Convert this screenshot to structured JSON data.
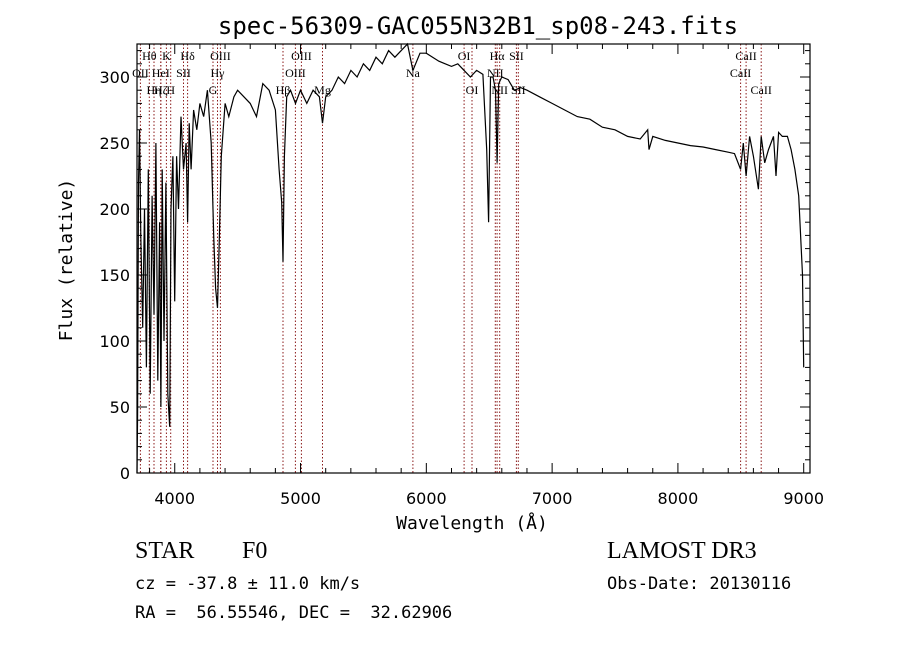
{
  "chart_data": {
    "type": "line",
    "title": "spec-56309-GAC055N32B1_sp08-243.fits",
    "xlabel": "Wavelength (Å)",
    "ylabel": "Flux (relative)",
    "xlim": [
      3700,
      9050
    ],
    "ylim": [
      0,
      325
    ],
    "xticks": [
      4000,
      5000,
      6000,
      7000,
      8000,
      9000
    ],
    "yticks": [
      0,
      50,
      100,
      150,
      200,
      250,
      300
    ],
    "series": [
      {
        "name": "spectrum",
        "x": [
          3700,
          3705,
          3712,
          3720,
          3730,
          3745,
          3760,
          3775,
          3790,
          3805,
          3820,
          3835,
          3850,
          3865,
          3880,
          3890,
          3900,
          3915,
          3930,
          3945,
          3960,
          3970,
          3985,
          4000,
          4015,
          4030,
          4050,
          4070,
          4090,
          4102,
          4115,
          4130,
          4150,
          4175,
          4200,
          4230,
          4260,
          4290,
          4310,
          4325,
          4340,
          4355,
          4370,
          4400,
          4430,
          4470,
          4500,
          4550,
          4600,
          4650,
          4700,
          4750,
          4800,
          4830,
          4850,
          4861,
          4872,
          4890,
          4920,
          4960,
          5000,
          5050,
          5100,
          5150,
          5175,
          5200,
          5250,
          5300,
          5350,
          5400,
          5450,
          5500,
          5550,
          5600,
          5650,
          5700,
          5750,
          5800,
          5850,
          5893,
          5950,
          6000,
          6050,
          6100,
          6150,
          6200,
          6250,
          6300,
          6350,
          6400,
          6450,
          6480,
          6495,
          6510,
          6530,
          6550,
          6563,
          6575,
          6600,
          6650,
          6700,
          6750,
          6800,
          6900,
          7000,
          7100,
          7200,
          7300,
          7400,
          7500,
          7600,
          7700,
          7760,
          7770,
          7800,
          7900,
          8000,
          8100,
          8200,
          8300,
          8400,
          8450,
          8498,
          8520,
          8542,
          8570,
          8600,
          8640,
          8662,
          8690,
          8720,
          8760,
          8780,
          8800,
          8830,
          8870,
          8900,
          8930,
          8960,
          8990,
          9000
        ],
        "y": [
          0,
          45,
          220,
          260,
          180,
          110,
          200,
          80,
          230,
          60,
          210,
          120,
          250,
          70,
          190,
          50,
          230,
          100,
          220,
          60,
          35,
          200,
          240,
          130,
          240,
          200,
          270,
          230,
          250,
          190,
          265,
          230,
          275,
          260,
          280,
          270,
          290,
          250,
          180,
          140,
          125,
          180,
          240,
          280,
          270,
          285,
          290,
          285,
          280,
          270,
          295,
          290,
          275,
          230,
          205,
          160,
          240,
          285,
          290,
          280,
          290,
          280,
          290,
          285,
          265,
          285,
          290,
          300,
          295,
          305,
          300,
          310,
          305,
          315,
          310,
          320,
          315,
          320,
          325,
          305,
          318,
          318,
          315,
          312,
          310,
          308,
          310,
          305,
          300,
          305,
          302,
          245,
          190,
          300,
          300,
          290,
          235,
          295,
          300,
          298,
          290,
          292,
          290,
          285,
          280,
          275,
          270,
          268,
          262,
          260,
          255,
          253,
          260,
          245,
          255,
          252,
          250,
          248,
          247,
          245,
          243,
          242,
          230,
          250,
          225,
          255,
          240,
          215,
          255,
          235,
          245,
          255,
          225,
          258,
          255,
          255,
          245,
          230,
          210,
          150,
          80
        ]
      }
    ],
    "lines": [
      {
        "name": "H-theta",
        "label": "Hθ",
        "wave": 3798,
        "row": 0
      },
      {
        "name": "OII",
        "label": "OII",
        "wave": 3727,
        "row": 1
      },
      {
        "name": "H-eta",
        "label": "Hη",
        "wave": 3835,
        "row": 2
      },
      {
        "name": "K",
        "label": "K",
        "wave": 3934,
        "row": 0
      },
      {
        "name": "HeI",
        "label": "HeI",
        "wave": 3889,
        "row": 1
      },
      {
        "name": "H-zeta",
        "label": "Hζ",
        "wave": 3889,
        "row": 2
      },
      {
        "name": "SII",
        "label": "SII",
        "wave": 4070,
        "row": 1
      },
      {
        "name": "H",
        "label": "H",
        "wave": 3968,
        "row": 2
      },
      {
        "name": "H-delta",
        "label": "Hδ",
        "wave": 4102,
        "row": 0
      },
      {
        "name": "OIII-4363",
        "label": "OIII",
        "wave": 4363,
        "row": 0
      },
      {
        "name": "H-gamma",
        "label": "Hγ",
        "wave": 4340,
        "row": 1
      },
      {
        "name": "G",
        "label": "G",
        "wave": 4304,
        "row": 2
      },
      {
        "name": "H-beta",
        "label": "Hβ",
        "wave": 4861,
        "row": 2
      },
      {
        "name": "OIII-4959",
        "label": "OIII",
        "wave": 4959,
        "row": 1
      },
      {
        "name": "OIII-5007",
        "label": "OIII",
        "wave": 5007,
        "row": 0
      },
      {
        "name": "Mg",
        "label": "Mg",
        "wave": 5175,
        "row": 2
      },
      {
        "name": "Na",
        "label": "Na",
        "wave": 5893,
        "row": 1
      },
      {
        "name": "OI-6300",
        "label": "OI",
        "wave": 6300,
        "row": 0
      },
      {
        "name": "OI-6363",
        "label": "OI",
        "wave": 6363,
        "row": 2
      },
      {
        "name": "H-alpha",
        "label": "Hα",
        "wave": 6563,
        "row": 0
      },
      {
        "name": "NII-6548",
        "label": "NII",
        "wave": 6548,
        "row": 1
      },
      {
        "name": "NII-6583",
        "label": "NII",
        "wave": 6583,
        "row": 2
      },
      {
        "name": "SII-6716",
        "label": "SII",
        "wave": 6716,
        "row": 0
      },
      {
        "name": "SII-6731",
        "label": "SII",
        "wave": 6731,
        "row": 2
      },
      {
        "name": "CaII-8498",
        "label": "CaII",
        "wave": 8498,
        "row": 1
      },
      {
        "name": "CaII-8542",
        "label": "CaII",
        "wave": 8542,
        "row": 0
      },
      {
        "name": "CaII-8662",
        "label": "CaII",
        "wave": 8662,
        "row": 2
      }
    ],
    "legend": "none",
    "grid": false
  },
  "info": {
    "object_class": "STAR",
    "subclass": "F0",
    "survey": "LAMOST DR3",
    "redshift": "cz = -37.8 ± 11.0 km/s",
    "obs_date": "Obs-Date: 20130116",
    "coords": "RA =  56.55546, DEC =  32.62906"
  },
  "colors": {
    "line_marker": "#8b1a1a",
    "spectrum": "#000000",
    "axis": "#000000"
  }
}
